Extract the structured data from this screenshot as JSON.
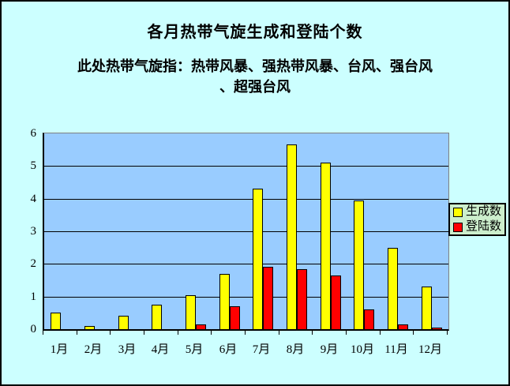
{
  "title": "各月热带气旋生成和登陆个数",
  "subtitle_line1": "此处热带气旋指：热带风暴、强热带风暴、台风、强台风",
  "subtitle_line2": "、超强台风",
  "colors": {
    "canvas_bg": "#CCFFFF",
    "plot_bg": "#99CCFF",
    "plot_border": "#808080",
    "axis": "#000000",
    "legend_bg": "#CCEECC",
    "generated_bar": "#FFFF00",
    "landfall_bar": "#FF0000"
  },
  "chart_data": {
    "type": "bar",
    "title": "各月热带气旋生成和登陆个数",
    "categories": [
      "1月",
      "2月",
      "3月",
      "4月",
      "5月",
      "6月",
      "7月",
      "8月",
      "9月",
      "10月",
      "11月",
      "12月"
    ],
    "series": [
      {
        "name": "生成数",
        "color": "#FFFF00",
        "values": [
          0.5,
          0.1,
          0.4,
          0.75,
          1.05,
          1.7,
          4.3,
          5.65,
          5.1,
          3.95,
          2.5,
          1.3
        ]
      },
      {
        "name": "登陆数",
        "color": "#FF0000",
        "values": [
          0,
          0,
          0,
          0,
          0.15,
          0.7,
          1.9,
          1.85,
          1.65,
          0.6,
          0.15,
          0.05
        ]
      }
    ],
    "xlabel": "",
    "ylabel": "",
    "ylim": [
      0,
      6
    ],
    "yticks": [
      0,
      1,
      2,
      3,
      4,
      5,
      6
    ],
    "grid": true,
    "legend_position": "right"
  }
}
